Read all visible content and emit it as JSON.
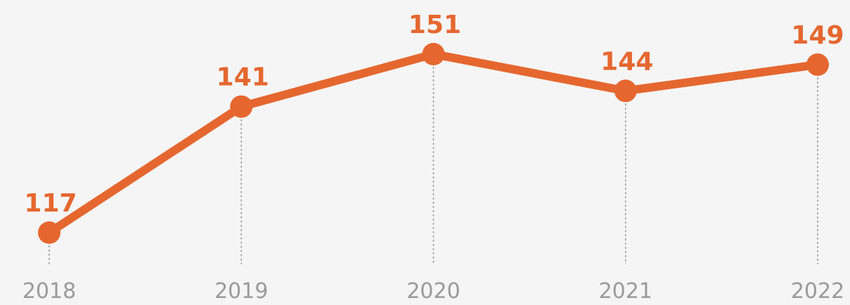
{
  "chart_data": {
    "type": "line",
    "categories": [
      "2018",
      "2019",
      "2020",
      "2021",
      "2022"
    ],
    "values": [
      117,
      141,
      151,
      144,
      149
    ],
    "color": "#e5672f"
  }
}
